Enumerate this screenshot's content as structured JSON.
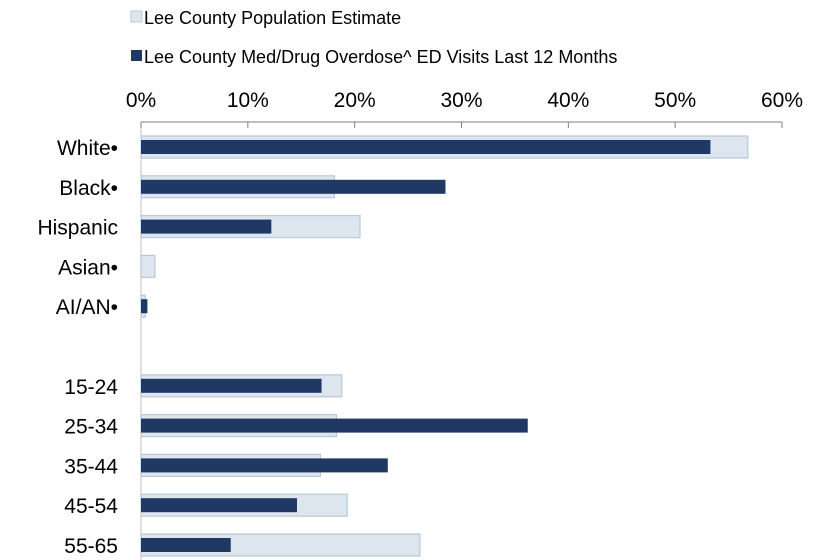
{
  "chart_data": {
    "type": "bar",
    "orientation": "horizontal",
    "title": "",
    "xlabel": "",
    "ylabel": "",
    "x_axis_position": "top",
    "xlim": [
      0,
      60
    ],
    "x_ticks": [
      "0%",
      "10%",
      "20%",
      "30%",
      "40%",
      "50%",
      "60%"
    ],
    "grid": false,
    "legend_position": "top",
    "categories": [
      "White•",
      "Black•",
      "Hispanic",
      "Asian•",
      "AI/AN•",
      "",
      "15-24",
      "25-34",
      "35-44",
      "45-54",
      "55-65"
    ],
    "series": [
      {
        "name": "Lee County Population Estimate",
        "color": "#dde6ee",
        "border": "#b8c9d9",
        "values": [
          56.8,
          18.1,
          20.5,
          1.3,
          0.4,
          null,
          18.8,
          18.3,
          16.8,
          19.3,
          26.1
        ]
      },
      {
        "name": "Lee County Med/Drug Overdose^ ED Visits Last 12 Months",
        "color": "#1f3864",
        "values": [
          53.3,
          28.5,
          12.2,
          null,
          0.6,
          null,
          16.9,
          36.2,
          23.1,
          14.6,
          8.4
        ]
      }
    ]
  }
}
